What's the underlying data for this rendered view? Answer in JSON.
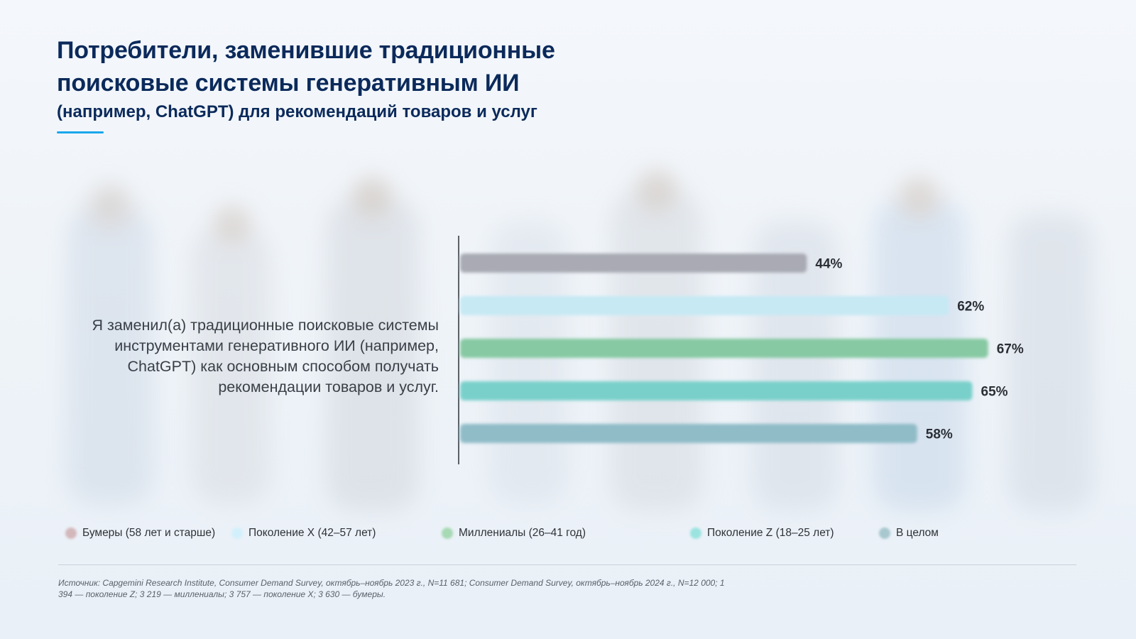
{
  "title": {
    "line1": "Потребители, заменившие традиционные",
    "line2": "поисковые системы генеративным ИИ",
    "subtitle": "(например, ChatGPT) для рекомендаций товаров и услуг"
  },
  "colors": {
    "title": "#0b2a5b",
    "accent_underline": "#1aa7ec"
  },
  "chart_data": {
    "type": "bar",
    "orientation": "horizontal",
    "category_label": "Я заменил(а) традиционные поисковые системы инструментами генеративного ИИ (например, ChatGPT) как основным способом получать рекомендации товаров и услуг.",
    "xlim": [
      0,
      100
    ],
    "grid": false,
    "legend_position": "bottom",
    "series": [
      {
        "name": "Бумеры (58 лет и старше)",
        "value": 44,
        "label": "44%",
        "color": "#a9aab3"
      },
      {
        "name": "Поколение X (42–57 лет)",
        "value": 62,
        "label": "62%",
        "color": "#c6e9f4"
      },
      {
        "name": "Миллениалы (26–41 год)",
        "value": 67,
        "label": "67%",
        "color": "#86c9a2"
      },
      {
        "name": "Поколение Z (18–25 лет)",
        "value": 65,
        "label": "65%",
        "color": "#79d0cb"
      },
      {
        "name": "В целом",
        "value": 58,
        "label": "58%",
        "color": "#8fbcc7"
      }
    ]
  },
  "legend": {
    "items": [
      {
        "label": "Бумеры (58 лет и старше)",
        "color": "#d3b8bb",
        "icon": "circle-dot-icon"
      },
      {
        "label": "Поколение X (42–57 лет)",
        "color": "#d2f0fb",
        "icon": "circle-dot-icon"
      },
      {
        "label": "Миллениалы (26–41 год)",
        "color": "#a6d9b4",
        "icon": "circle-dot-icon"
      },
      {
        "label": "Поколение Z (18–25 лет)",
        "color": "#9ae3df",
        "icon": "circle-dot-icon"
      },
      {
        "label": "В целом",
        "color": "#a8c7cf",
        "icon": "circle-dot-icon"
      }
    ]
  },
  "source": "Источник: Capgemini Research Institute, Consumer Demand Survey, октябрь–ноябрь 2023 г., N=11 681; Consumer Demand Survey, октябрь–ноябрь 2024 г., N=12 000; 1 394 — поколение Z; 3 219 — миллениалы; 3 757 — поколение X; 3 630 — бумеры."
}
